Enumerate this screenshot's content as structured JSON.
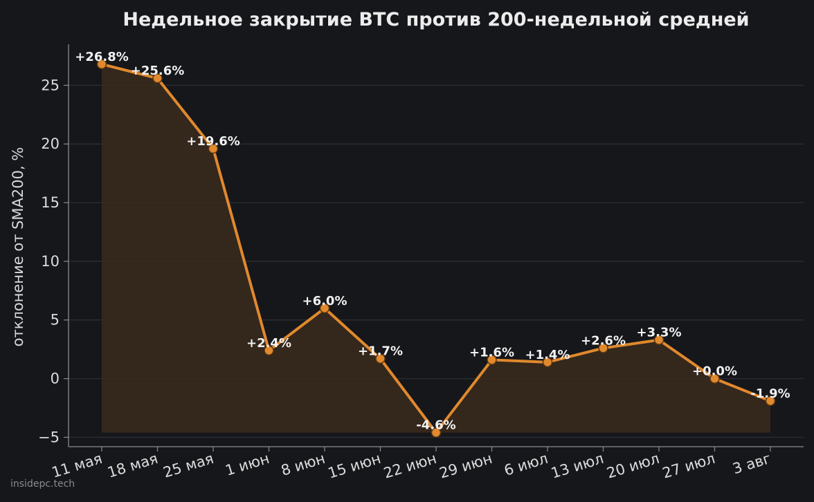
{
  "colors": {
    "background": "#16171b",
    "line": "#e0892e",
    "marker_fill": "#e0892e",
    "marker_edge": "#5a3510",
    "area_fill": "#3a2a1c",
    "grid": "#2f3036",
    "text": "#e6e6e6"
  },
  "chart_data": {
    "type": "line",
    "title": "Недельное закрытие BTC против 200-недельной средней",
    "xlabel": "",
    "ylabel": "отклонение от SMA200, %",
    "ylim": [
      -5.8,
      28.5
    ],
    "yticks": [
      -5,
      0,
      5,
      10,
      15,
      20,
      25
    ],
    "ytick_labels": [
      "−5",
      "0",
      "5",
      "10",
      "15",
      "20",
      "25"
    ],
    "grid": true,
    "categories": [
      "11 мая",
      "18 мая",
      "25 мая",
      "1 июн",
      "8 июн",
      "15 июн",
      "22 июн",
      "29 июн",
      "6 июл",
      "13 июл",
      "20 июл",
      "27 июл",
      "3 авг"
    ],
    "series": [
      {
        "values": [
          26.8,
          25.6,
          19.6,
          2.4,
          6.0,
          1.7,
          -4.6,
          1.6,
          1.4,
          2.6,
          3.3,
          0.0,
          -1.9
        ],
        "labels": [
          "+26.8%",
          "+25.6%",
          "+19.6%",
          "+2.4%",
          "+6.0%",
          "+1.7%",
          "-4.6%",
          "+1.6%",
          "+1.4%",
          "+2.6%",
          "+3.3%",
          "+0.0%",
          "-1.9%"
        ]
      }
    ],
    "area_baseline": -4.6
  },
  "watermark": "insidepc.tech"
}
